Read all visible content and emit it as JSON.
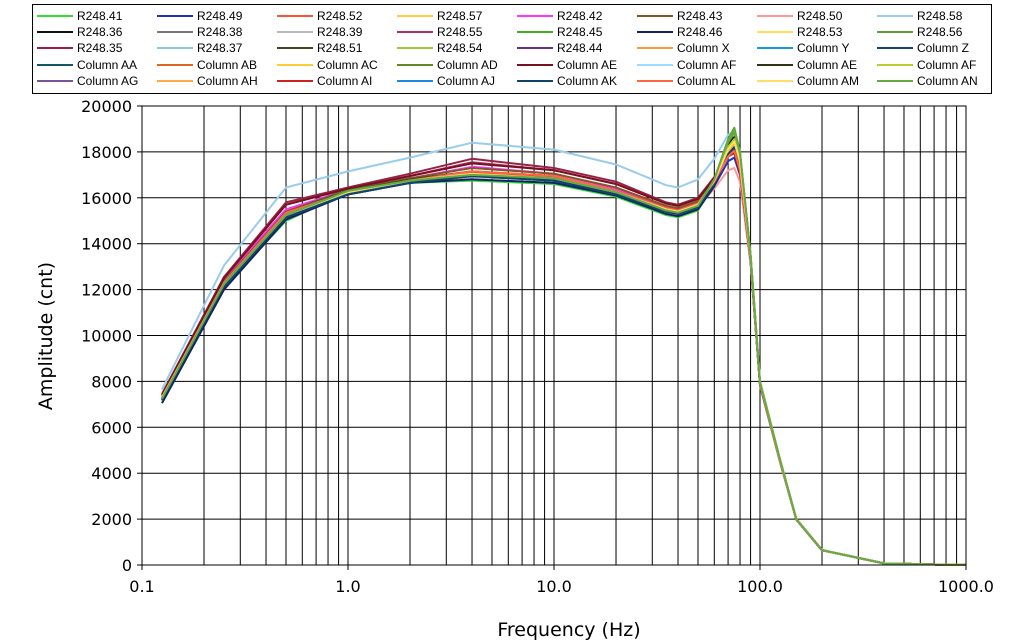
{
  "chart_data": {
    "type": "line",
    "xlabel": "Frequency (Hz)",
    "ylabel": "Amplitude (cnt)",
    "x_scale": "log",
    "xlim": [
      0.1,
      1000
    ],
    "ylim": [
      0,
      20000
    ],
    "x_ticks": [
      "0.1",
      "1.0",
      "10.0",
      "100.0",
      "1000.0"
    ],
    "y_ticks": [
      "0",
      "2000",
      "4000",
      "6000",
      "8000",
      "10000",
      "12000",
      "14000",
      "16000",
      "18000",
      "20000"
    ],
    "grid": true,
    "legend_position": "top",
    "x": [
      0.125,
      0.25,
      0.5,
      1,
      2,
      4,
      10,
      20,
      35,
      40,
      50,
      60,
      70,
      75,
      80,
      90,
      100,
      125,
      150,
      200,
      400,
      800,
      1000
    ],
    "series": [
      {
        "name": "R248.41",
        "color": "#33dd33",
        "values": [
          7150,
          12100,
          15000,
          16250,
          16650,
          16750,
          16600,
          16050,
          15250,
          15150,
          15450,
          16600,
          18300,
          18900,
          17900,
          13500,
          8000,
          4600,
          2000,
          650,
          70,
          15,
          10
        ]
      },
      {
        "name": "R248.49",
        "color": "#2233bb",
        "values": [
          7250,
          12250,
          15250,
          16200,
          16700,
          17100,
          16850,
          16200,
          15450,
          15350,
          15650,
          16500,
          17600,
          17750,
          17000,
          13200,
          7850,
          4500,
          1980,
          640,
          70,
          15,
          10
        ]
      },
      {
        "name": "R248.52",
        "color": "#ff5533",
        "values": [
          7300,
          12300,
          15350,
          16250,
          16750,
          17150,
          16950,
          16300,
          15550,
          15450,
          15750,
          16700,
          17800,
          18050,
          17200,
          13300,
          7900,
          4520,
          1990,
          645,
          70,
          15,
          10
        ]
      },
      {
        "name": "R248.57",
        "color": "#ffcc44",
        "values": [
          7250,
          12200,
          15200,
          16200,
          16700,
          17000,
          16800,
          16250,
          15500,
          15400,
          15700,
          16750,
          18050,
          18450,
          17550,
          13400,
          7950,
          4560,
          2000,
          650,
          70,
          15,
          10
        ]
      },
      {
        "name": "R248.42",
        "color": "#ff33ff",
        "values": [
          7400,
          12450,
          15500,
          16350,
          16850,
          17350,
          17050,
          16400,
          15600,
          15500,
          15800,
          16850,
          18050,
          18250,
          17300,
          13350,
          7900,
          4540,
          1990,
          645,
          70,
          15,
          10
        ]
      },
      {
        "name": "R248.43",
        "color": "#885522",
        "values": [
          7350,
          12350,
          15400,
          16350,
          16850,
          17300,
          17050,
          16450,
          15650,
          15550,
          15850,
          16850,
          18000,
          18200,
          17300,
          13350,
          7900,
          4540,
          1990,
          645,
          70,
          15,
          10
        ]
      },
      {
        "name": "R248.50",
        "color": "#ff9999",
        "values": [
          7200,
          12200,
          15300,
          16200,
          16650,
          17000,
          16800,
          16200,
          15450,
          15350,
          15600,
          16400,
          17200,
          17300,
          16700,
          13100,
          7800,
          4480,
          1980,
          640,
          70,
          15,
          10
        ]
      },
      {
        "name": "R248.58",
        "color": "#99ccee",
        "values": [
          7650,
          13050,
          16450,
          17150,
          17750,
          18400,
          18100,
          17450,
          16550,
          16450,
          16800,
          17700,
          18750,
          18900,
          17900,
          13500,
          8000,
          4600,
          2010,
          655,
          70,
          15,
          10
        ]
      },
      {
        "name": "R248.36",
        "color": "#111111",
        "values": [
          7250,
          12200,
          15200,
          16150,
          16650,
          16950,
          16800,
          16200,
          15450,
          15350,
          15650,
          16700,
          18300,
          18650,
          17700,
          13450,
          7950,
          4570,
          2000,
          650,
          70,
          15,
          10
        ]
      },
      {
        "name": "R248.38",
        "color": "#777777",
        "values": [
          7250,
          12250,
          15250,
          16200,
          16700,
          17000,
          16850,
          16250,
          15500,
          15400,
          15700,
          16700,
          18000,
          18300,
          17400,
          13350,
          7900,
          4550,
          1990,
          645,
          70,
          15,
          10
        ]
      },
      {
        "name": "R248.39",
        "color": "#bbbbbb",
        "values": [
          7200,
          12150,
          15150,
          16150,
          16650,
          16900,
          16750,
          16150,
          15400,
          15300,
          15600,
          16600,
          18100,
          18400,
          17500,
          13400,
          7950,
          4560,
          2000,
          650,
          70,
          15,
          10
        ]
      },
      {
        "name": "R248.55",
        "color": "#aa3366",
        "values": [
          7400,
          12500,
          15700,
          16400,
          16950,
          17550,
          17200,
          16600,
          15750,
          15650,
          15950,
          16900,
          17900,
          18100,
          17200,
          13300,
          7900,
          4530,
          1990,
          645,
          70,
          15,
          10
        ]
      },
      {
        "name": "R248.45",
        "color": "#44aa22",
        "values": [
          7250,
          12250,
          15200,
          16350,
          16750,
          17000,
          16850,
          16250,
          15450,
          15350,
          15650,
          16800,
          18550,
          19050,
          18000,
          13500,
          8000,
          4600,
          2010,
          655,
          70,
          15,
          10
        ]
      },
      {
        "name": "R248.46",
        "color": "#112266",
        "values": [
          7050,
          12000,
          15050,
          16150,
          16650,
          16800,
          16650,
          16100,
          15300,
          15200,
          15500,
          16500,
          18000,
          18300,
          17400,
          13350,
          7900,
          4550,
          1990,
          645,
          70,
          15,
          10
        ]
      },
      {
        "name": "R248.53",
        "color": "#ffdd55",
        "values": [
          7300,
          12250,
          15250,
          16250,
          16750,
          17050,
          16850,
          16250,
          15500,
          15400,
          15700,
          16750,
          18100,
          18450,
          17550,
          13400,
          7950,
          4560,
          2000,
          650,
          70,
          15,
          10
        ]
      },
      {
        "name": "R248.56",
        "color": "#669933",
        "values": [
          7300,
          12250,
          15250,
          16300,
          16800,
          17050,
          16900,
          16300,
          15500,
          15400,
          15700,
          16800,
          18400,
          18850,
          17900,
          13450,
          7950,
          4580,
          2000,
          650,
          70,
          15,
          10
        ]
      },
      {
        "name": "R248.35",
        "color": "#992244",
        "values": [
          7450,
          12550,
          15800,
          16450,
          17050,
          17700,
          17300,
          16700,
          15800,
          15700,
          16000,
          16900,
          17800,
          17950,
          17100,
          13250,
          7850,
          4520,
          1985,
          642,
          70,
          15,
          10
        ]
      },
      {
        "name": "R248.37",
        "color": "#88ccee",
        "values": [
          7250,
          12200,
          15200,
          16200,
          16700,
          17000,
          16800,
          16200,
          15450,
          15350,
          15650,
          16650,
          18000,
          18300,
          17400,
          13350,
          7900,
          4550,
          1990,
          645,
          70,
          15,
          10
        ]
      },
      {
        "name": "R248.51",
        "color": "#444422",
        "values": [
          7300,
          12300,
          15350,
          16300,
          16800,
          17150,
          16950,
          16300,
          15550,
          15450,
          15750,
          16750,
          18000,
          18250,
          17350,
          13350,
          7900,
          4550,
          1990,
          645,
          70,
          15,
          10
        ]
      },
      {
        "name": "R248.54",
        "color": "#99cc33",
        "values": [
          7250,
          12250,
          15250,
          16250,
          16750,
          17000,
          16850,
          16250,
          15500,
          15400,
          15700,
          16750,
          18200,
          18550,
          17650,
          13400,
          7950,
          4570,
          2000,
          650,
          70,
          15,
          10
        ]
      },
      {
        "name": "R248.44",
        "color": "#663388",
        "values": [
          7300,
          12300,
          15350,
          16250,
          16750,
          17100,
          16900,
          16300,
          15550,
          15450,
          15750,
          16700,
          17900,
          18150,
          17250,
          13300,
          7900,
          4540,
          1990,
          645,
          70,
          15,
          10
        ]
      },
      {
        "name": "Column X",
        "color": "#ff9933",
        "values": [
          7300,
          12250,
          15300,
          16250,
          16750,
          17050,
          16850,
          16250,
          15500,
          15400,
          15700,
          16700,
          18000,
          18300,
          17400,
          13350,
          7900,
          4550,
          1990,
          645,
          70,
          15,
          10
        ]
      },
      {
        "name": "Column Y",
        "color": "#1199dd",
        "values": [
          7250,
          12200,
          15200,
          16200,
          16700,
          17000,
          16800,
          16200,
          15450,
          15350,
          15650,
          16650,
          17900,
          18200,
          17300,
          13300,
          7900,
          4540,
          1990,
          645,
          70,
          15,
          10
        ]
      },
      {
        "name": "Column Z",
        "color": "#114477",
        "values": [
          7200,
          12150,
          15150,
          16150,
          16650,
          16950,
          16750,
          16150,
          15400,
          15300,
          15600,
          16600,
          17900,
          18200,
          17300,
          13300,
          7900,
          4540,
          1990,
          645,
          70,
          15,
          10
        ]
      },
      {
        "name": "Column AA",
        "color": "#115566",
        "values": [
          7200,
          12150,
          15150,
          16150,
          16650,
          16950,
          16750,
          16150,
          15400,
          15300,
          15600,
          16600,
          17950,
          18250,
          17350,
          13300,
          7900,
          4540,
          1990,
          645,
          70,
          15,
          10
        ]
      },
      {
        "name": "Column AB",
        "color": "#dd6622",
        "values": [
          7300,
          12300,
          15300,
          16250,
          16750,
          17050,
          16850,
          16250,
          15500,
          15400,
          15700,
          16700,
          18000,
          18300,
          17400,
          13350,
          7900,
          4550,
          1990,
          645,
          70,
          15,
          10
        ]
      },
      {
        "name": "Column AC",
        "color": "#ffcc33",
        "values": [
          7300,
          12250,
          15250,
          16250,
          16750,
          17050,
          16850,
          16250,
          15500,
          15400,
          15700,
          16750,
          18100,
          18400,
          17500,
          13400,
          7950,
          4560,
          2000,
          650,
          70,
          15,
          10
        ]
      },
      {
        "name": "Column AD",
        "color": "#668822",
        "values": [
          7250,
          12250,
          15250,
          16250,
          16750,
          17000,
          16850,
          16250,
          15500,
          15400,
          15700,
          16750,
          18200,
          18550,
          17650,
          13400,
          7950,
          4570,
          2000,
          650,
          70,
          15,
          10
        ]
      },
      {
        "name": "Column AE",
        "color": "#771122",
        "values": [
          7400,
          12500,
          15700,
          16400,
          16950,
          17500,
          17200,
          16600,
          15750,
          15650,
          15950,
          16850,
          17800,
          18000,
          17150,
          13250,
          7850,
          4520,
          1985,
          642,
          70,
          15,
          10
        ]
      },
      {
        "name": "Column AF",
        "color": "#99ddff",
        "values": [
          7250,
          12200,
          15200,
          16200,
          16700,
          17000,
          16800,
          16200,
          15450,
          15350,
          15650,
          16650,
          18000,
          18300,
          17400,
          13350,
          7900,
          4550,
          1990,
          645,
          70,
          15,
          10
        ]
      },
      {
        "name": "Column AE",
        "color": "#333311",
        "values": [
          7300,
          12300,
          15300,
          16250,
          16750,
          17050,
          16850,
          16250,
          15500,
          15400,
          15700,
          16700,
          18000,
          18300,
          17400,
          13350,
          7900,
          4550,
          1990,
          645,
          70,
          15,
          10
        ]
      },
      {
        "name": "Column AF",
        "color": "#bbcc33",
        "values": [
          7250,
          12250,
          15250,
          16250,
          16750,
          17000,
          16850,
          16250,
          15500,
          15400,
          15700,
          16750,
          18200,
          18550,
          17650,
          13400,
          7950,
          4570,
          2000,
          650,
          70,
          15,
          10
        ]
      },
      {
        "name": "Column AG",
        "color": "#775599",
        "values": [
          7300,
          12300,
          15300,
          16250,
          16750,
          17100,
          16900,
          16300,
          15550,
          15450,
          15750,
          16700,
          17900,
          18150,
          17250,
          13300,
          7900,
          4540,
          1990,
          645,
          70,
          15,
          10
        ]
      },
      {
        "name": "Column AH",
        "color": "#ffaa44",
        "values": [
          7300,
          12250,
          15300,
          16250,
          16750,
          17050,
          16850,
          16250,
          15500,
          15400,
          15700,
          16700,
          18000,
          18300,
          17400,
          13350,
          7900,
          4550,
          1990,
          645,
          70,
          15,
          10
        ]
      },
      {
        "name": "Column AI",
        "color": "#cc2222",
        "values": [
          7300,
          12300,
          15300,
          16250,
          16750,
          17100,
          16900,
          16300,
          15550,
          15450,
          15750,
          16700,
          17900,
          18100,
          17250,
          13300,
          7900,
          4540,
          1990,
          645,
          70,
          15,
          10
        ]
      },
      {
        "name": "Column AJ",
        "color": "#2288dd",
        "values": [
          7250,
          12200,
          15200,
          16200,
          16700,
          17000,
          16800,
          16200,
          15450,
          15350,
          15650,
          16650,
          17900,
          18200,
          17300,
          13300,
          7900,
          4540,
          1990,
          645,
          70,
          15,
          10
        ]
      },
      {
        "name": "Column AK",
        "color": "#114466",
        "values": [
          7200,
          12150,
          15150,
          16150,
          16650,
          16950,
          16750,
          16150,
          15400,
          15300,
          15600,
          16600,
          17900,
          18200,
          17300,
          13300,
          7900,
          4540,
          1990,
          645,
          70,
          15,
          10
        ]
      },
      {
        "name": "Column AL",
        "color": "#ff6644",
        "values": [
          7300,
          12300,
          15350,
          16250,
          16750,
          17150,
          16950,
          16300,
          15550,
          15450,
          15750,
          16700,
          17800,
          18050,
          17200,
          13300,
          7900,
          4520,
          1990,
          645,
          70,
          15,
          10
        ]
      },
      {
        "name": "Column AM",
        "color": "#ffdd66",
        "values": [
          7300,
          12250,
          15250,
          16250,
          16750,
          17050,
          16850,
          16250,
          15500,
          15400,
          15700,
          16750,
          18100,
          18450,
          17550,
          13400,
          7950,
          4560,
          2000,
          650,
          70,
          15,
          10
        ]
      },
      {
        "name": "Column AN",
        "color": "#66aa44",
        "values": [
          7250,
          12250,
          15250,
          16300,
          16750,
          17000,
          16850,
          16250,
          15450,
          15350,
          15650,
          16800,
          18500,
          18950,
          17950,
          13450,
          7950,
          4580,
          2000,
          650,
          70,
          15,
          10
        ]
      }
    ]
  }
}
